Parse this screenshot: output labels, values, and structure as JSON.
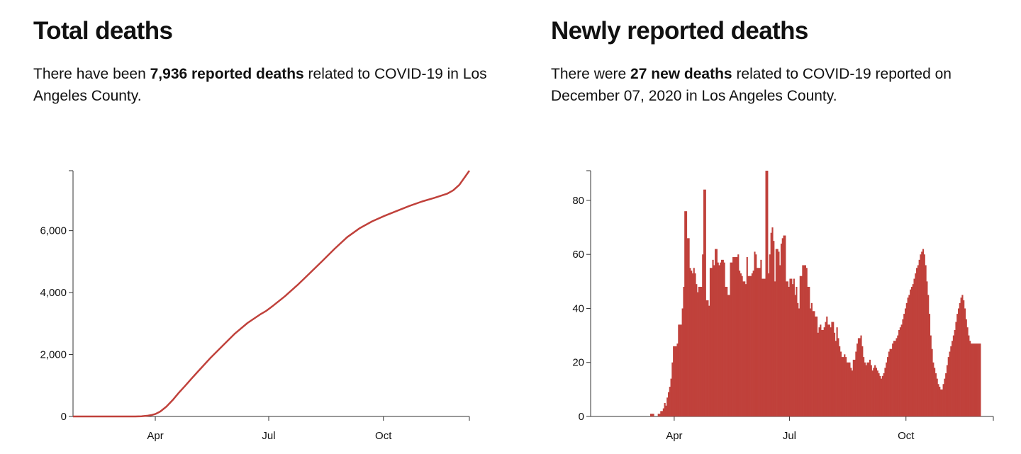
{
  "total_section": {
    "title": "Total deaths",
    "desc_prefix": "There have been ",
    "desc_bold": "7,936 reported deaths",
    "desc_suffix": " related to COVID-19 in Los Angeles County."
  },
  "new_section": {
    "title": "Newly reported deaths",
    "desc_prefix": "There were ",
    "desc_bold": "27 new deaths",
    "desc_suffix": " related to COVID-19 reported on December 07, 2020 in Los Angeles County."
  },
  "colors": {
    "series": "#c0413b",
    "axis": "#333333"
  },
  "chart_data": [
    {
      "type": "line",
      "title": "Total deaths",
      "xlabel": "",
      "ylabel": "",
      "x_range_days": [
        0,
        318
      ],
      "x_note": "day 0 = January 26, 2020",
      "ylim": [
        0,
        7936
      ],
      "yticks": [
        0,
        2000,
        4000,
        6000
      ],
      "ytick_labels": [
        "0",
        "2,000",
        "4,000",
        "6,000"
      ],
      "xticks_days": [
        66,
        157,
        249
      ],
      "xtick_labels": [
        "Apr",
        "Jul",
        "Oct"
      ],
      "series": [
        {
          "name": "Total deaths",
          "x": [
            0,
            40,
            50,
            55,
            60,
            63,
            66,
            70,
            75,
            80,
            85,
            90,
            95,
            100,
            110,
            120,
            130,
            140,
            150,
            155,
            160,
            170,
            180,
            190,
            200,
            210,
            220,
            230,
            240,
            250,
            260,
            270,
            280,
            290,
            300,
            305,
            310,
            318
          ],
          "values": [
            0,
            0,
            1,
            7,
            26,
            45,
            78,
            160,
            320,
            530,
            770,
            990,
            1220,
            1440,
            1880,
            2280,
            2680,
            3020,
            3290,
            3410,
            3560,
            3880,
            4240,
            4630,
            5020,
            5420,
            5790,
            6080,
            6300,
            6480,
            6640,
            6800,
            6940,
            7060,
            7190,
            7300,
            7480,
            7936
          ]
        }
      ]
    },
    {
      "type": "bar",
      "title": "Newly reported deaths",
      "xlabel": "",
      "ylabel": "",
      "x_range_days": [
        0,
        318
      ],
      "x_note": "day 0 = January 26, 2020",
      "ylim": [
        0,
        91
      ],
      "yticks": [
        0,
        20,
        40,
        60,
        80
      ],
      "ytick_labels": [
        "0",
        "20",
        "40",
        "60",
        "80"
      ],
      "xticks_days": [
        66,
        157,
        249
      ],
      "xtick_labels": [
        "Apr",
        "Jul",
        "Oct"
      ],
      "series": [
        {
          "name": "New deaths",
          "start_day": 0,
          "values": [
            0,
            0,
            0,
            0,
            0,
            0,
            0,
            0,
            0,
            0,
            0,
            0,
            0,
            0,
            0,
            0,
            0,
            0,
            0,
            0,
            0,
            0,
            0,
            0,
            0,
            0,
            0,
            0,
            0,
            0,
            0,
            0,
            0,
            0,
            0,
            0,
            0,
            0,
            0,
            0,
            0,
            0,
            0,
            0,
            0,
            0,
            0,
            1,
            1,
            1,
            0,
            0,
            0,
            1,
            1,
            2,
            2,
            3,
            5,
            4,
            7,
            9,
            11,
            14,
            20,
            26,
            26,
            26,
            27,
            34,
            34,
            34,
            40,
            48,
            76,
            76,
            66,
            66,
            55,
            54,
            53,
            55,
            53,
            49,
            46,
            48,
            48,
            48,
            60,
            84,
            84,
            43,
            43,
            41,
            55,
            55,
            58,
            56,
            62,
            62,
            57,
            56,
            57,
            58,
            58,
            57,
            48,
            48,
            45,
            45,
            57,
            57,
            59,
            59,
            59,
            59,
            60,
            54,
            53,
            52,
            50,
            50,
            49,
            59,
            52,
            52,
            52,
            53,
            54,
            61,
            60,
            55,
            55,
            55,
            58,
            51,
            51,
            51,
            91,
            91,
            53,
            60,
            68,
            70,
            65,
            50,
            62,
            62,
            61,
            56,
            64,
            66,
            67,
            67,
            50,
            50,
            48,
            51,
            51,
            49,
            51,
            45,
            48,
            42,
            40,
            52,
            52,
            56,
            56,
            56,
            55,
            48,
            48,
            40,
            42,
            39,
            39,
            37,
            37,
            31,
            33,
            34,
            32,
            32,
            33,
            35,
            37,
            34,
            34,
            33,
            35,
            35,
            31,
            28,
            33,
            29,
            26,
            24,
            22,
            22,
            23,
            22,
            20,
            20,
            20,
            18,
            17,
            21,
            21,
            24,
            27,
            29,
            29,
            30,
            26,
            22,
            20,
            19,
            20,
            20,
            21,
            19,
            17,
            18,
            19,
            18,
            17,
            16,
            15,
            14,
            15,
            16,
            18,
            20,
            22,
            24,
            25,
            25,
            27,
            28,
            28,
            29,
            30,
            32,
            33,
            34,
            36,
            38,
            40,
            42,
            44,
            45,
            47,
            48,
            49,
            51,
            53,
            55,
            56,
            58,
            60,
            61,
            62,
            60,
            56,
            50,
            45,
            38,
            30,
            25,
            20,
            18,
            16,
            14,
            12,
            11,
            10,
            10,
            12,
            14,
            16,
            19,
            22,
            24,
            26,
            28,
            30,
            32,
            35,
            38,
            40,
            42,
            44,
            45,
            43,
            40,
            36,
            33,
            30,
            28,
            27,
            27,
            27,
            27,
            27,
            27,
            27,
            27
          ]
        }
      ]
    }
  ]
}
